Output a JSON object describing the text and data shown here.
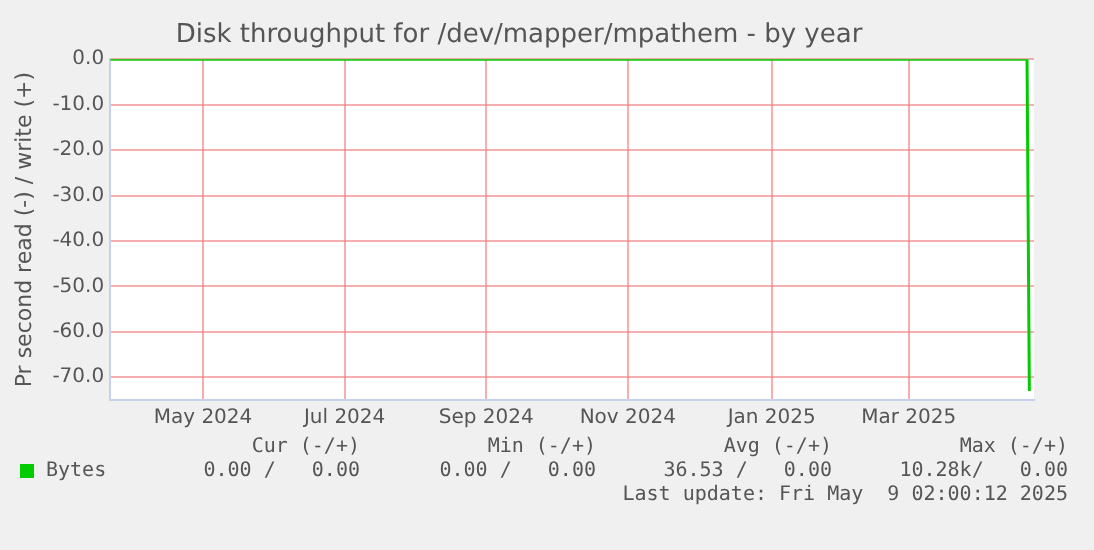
{
  "chart_data": {
    "type": "line",
    "title": "Disk throughput for /dev/mapper/mpathem - by year",
    "ylabel": "Pr second read (-) / write (+)",
    "x": [
      "2024-04-06",
      "2025-05-06",
      "2025-05-07"
    ],
    "series": [
      {
        "name": "Bytes",
        "color": "#00cc00",
        "values": [
          0,
          0,
          -73
        ]
      }
    ],
    "xlim": [
      "2024-04-06",
      "2025-05-09"
    ],
    "xticks": [
      {
        "value": "2024-05-16",
        "label": "May 2024"
      },
      {
        "value": "2024-07-16",
        "label": "Jul 2024"
      },
      {
        "value": "2024-09-15",
        "label": "Sep 2024"
      },
      {
        "value": "2024-11-15",
        "label": "Nov 2024"
      },
      {
        "value": "2025-01-16",
        "label": "Jan 2025"
      },
      {
        "value": "2025-03-16",
        "label": "Mar 2025"
      }
    ],
    "ylim": [
      -75,
      0
    ],
    "yticks": [
      {
        "value": 0,
        "label": "0.0"
      },
      {
        "value": -10,
        "label": "-10.0"
      },
      {
        "value": -20,
        "label": "-20.0"
      },
      {
        "value": -30,
        "label": "-30.0"
      },
      {
        "value": -40,
        "label": "-40.0"
      },
      {
        "value": -50,
        "label": "-50.0"
      },
      {
        "value": -60,
        "label": "-60.0"
      },
      {
        "value": -70,
        "label": "-70.0"
      }
    ],
    "grid": true,
    "legend": "bottom left",
    "marker": "none",
    "line_style": "solid",
    "annotations": [
      "Cur (-/+)",
      "Min (-/+)",
      "Avg (-/+)",
      "Max (-/+)",
      "0.00 /   0.00",
      "0.00 /   0.00",
      "36.53 /   0.00",
      "10.28k/   0.00",
      "Last update: Fri May  9 02:00:12 2025"
    ]
  }
}
